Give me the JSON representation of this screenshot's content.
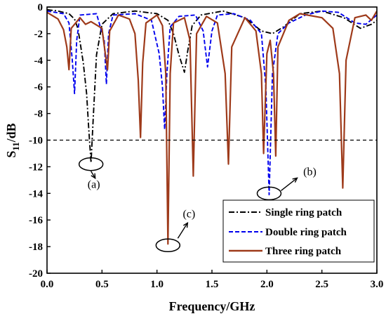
{
  "chart_data": {
    "type": "line",
    "xlabel": "Frequency/GHz",
    "ylabel_main": "S",
    "ylabel_sub": "11",
    "ylabel_suffix": "/dB",
    "xlim": [
      0.0,
      3.0
    ],
    "ylim": [
      -20,
      0
    ],
    "x_ticks": [
      "0.0",
      "0.5",
      "1.0",
      "1.5",
      "2.0",
      "2.5",
      "3.0"
    ],
    "x_tick_values": [
      0.0,
      0.5,
      1.0,
      1.5,
      2.0,
      2.5,
      3.0
    ],
    "y_ticks": [
      "0",
      "-2",
      "-4",
      "-6",
      "-8",
      "-10",
      "-12",
      "-14",
      "-16",
      "-18",
      "-20"
    ],
    "y_tick_values": [
      0,
      -2,
      -4,
      -6,
      -8,
      -10,
      -12,
      -14,
      -16,
      -18,
      -20
    ],
    "threshold": -10,
    "legend_position": "lower-right",
    "series": [
      {
        "name": "Single ring patch",
        "color": "#000000",
        "style": "dashdot",
        "points": [
          [
            0.0,
            -0.2
          ],
          [
            0.1,
            -0.3
          ],
          [
            0.2,
            -0.5
          ],
          [
            0.25,
            -0.9
          ],
          [
            0.28,
            -1.6
          ],
          [
            0.3,
            -2.6
          ],
          [
            0.33,
            -4.2
          ],
          [
            0.36,
            -6.5
          ],
          [
            0.38,
            -9.2
          ],
          [
            0.4,
            -11.7
          ],
          [
            0.42,
            -8.4
          ],
          [
            0.45,
            -3.6
          ],
          [
            0.5,
            -1.3
          ],
          [
            0.6,
            -0.5
          ],
          [
            0.8,
            -0.3
          ],
          [
            1.0,
            -0.5
          ],
          [
            1.1,
            -1.0
          ],
          [
            1.15,
            -2.0
          ],
          [
            1.2,
            -3.6
          ],
          [
            1.25,
            -4.9
          ],
          [
            1.28,
            -3.3
          ],
          [
            1.32,
            -1.4
          ],
          [
            1.4,
            -0.6
          ],
          [
            1.6,
            -0.3
          ],
          [
            1.8,
            -0.8
          ],
          [
            1.95,
            -1.8
          ],
          [
            2.05,
            -2.0
          ],
          [
            2.15,
            -1.5
          ],
          [
            2.3,
            -0.5
          ],
          [
            2.5,
            -0.3
          ],
          [
            2.7,
            -0.8
          ],
          [
            2.85,
            -1.6
          ],
          [
            2.95,
            -1.3
          ],
          [
            3.0,
            -1.0
          ]
        ]
      },
      {
        "name": "Double ring patch",
        "color": "#0000ee",
        "style": "dash",
        "points": [
          [
            0.0,
            -0.3
          ],
          [
            0.15,
            -0.5
          ],
          [
            0.2,
            -1.2
          ],
          [
            0.23,
            -4.0
          ],
          [
            0.25,
            -6.5
          ],
          [
            0.27,
            -2.5
          ],
          [
            0.3,
            -0.6
          ],
          [
            0.45,
            -0.5
          ],
          [
            0.52,
            -2.5
          ],
          [
            0.54,
            -5.8
          ],
          [
            0.56,
            -2.0
          ],
          [
            0.6,
            -0.6
          ],
          [
            0.8,
            -0.5
          ],
          [
            0.95,
            -1.0
          ],
          [
            1.02,
            -3.5
          ],
          [
            1.05,
            -6.0
          ],
          [
            1.07,
            -9.2
          ],
          [
            1.09,
            -5.0
          ],
          [
            1.12,
            -1.5
          ],
          [
            1.2,
            -0.7
          ],
          [
            1.35,
            -0.6
          ],
          [
            1.42,
            -1.8
          ],
          [
            1.46,
            -4.5
          ],
          [
            1.5,
            -1.8
          ],
          [
            1.55,
            -0.6
          ],
          [
            1.7,
            -0.5
          ],
          [
            1.85,
            -1.0
          ],
          [
            1.95,
            -2.0
          ],
          [
            1.99,
            -6.0
          ],
          [
            2.02,
            -14.1
          ],
          [
            2.05,
            -5.0
          ],
          [
            2.1,
            -2.0
          ],
          [
            2.2,
            -1.2
          ],
          [
            2.35,
            -0.6
          ],
          [
            2.5,
            -0.3
          ],
          [
            2.65,
            -0.4
          ],
          [
            2.8,
            -1.2
          ],
          [
            2.9,
            -1.3
          ],
          [
            3.0,
            -0.6
          ]
        ]
      },
      {
        "name": "Three ring patch",
        "color": "#9e3a1a",
        "style": "solid",
        "points": [
          [
            0.0,
            -0.4
          ],
          [
            0.1,
            -0.9
          ],
          [
            0.15,
            -1.7
          ],
          [
            0.18,
            -3.0
          ],
          [
            0.2,
            -4.7
          ],
          [
            0.22,
            -1.6
          ],
          [
            0.3,
            -0.8
          ],
          [
            0.35,
            -1.3
          ],
          [
            0.4,
            -1.1
          ],
          [
            0.5,
            -1.6
          ],
          [
            0.53,
            -3.5
          ],
          [
            0.55,
            -4.7
          ],
          [
            0.57,
            -1.8
          ],
          [
            0.65,
            -0.6
          ],
          [
            0.75,
            -0.9
          ],
          [
            0.8,
            -2.0
          ],
          [
            0.83,
            -5.5
          ],
          [
            0.85,
            -9.8
          ],
          [
            0.87,
            -4.2
          ],
          [
            0.9,
            -1.2
          ],
          [
            1.0,
            -0.6
          ],
          [
            1.05,
            -1.4
          ],
          [
            1.08,
            -5.0
          ],
          [
            1.1,
            -17.8
          ],
          [
            1.12,
            -5.0
          ],
          [
            1.15,
            -1.2
          ],
          [
            1.25,
            -0.8
          ],
          [
            1.3,
            -2.5
          ],
          [
            1.33,
            -12.7
          ],
          [
            1.36,
            -2.0
          ],
          [
            1.45,
            -0.7
          ],
          [
            1.55,
            -1.2
          ],
          [
            1.62,
            -5.0
          ],
          [
            1.65,
            -11.8
          ],
          [
            1.68,
            -3.0
          ],
          [
            1.8,
            -0.8
          ],
          [
            1.9,
            -1.8
          ],
          [
            1.95,
            -5.0
          ],
          [
            1.97,
            -11.0
          ],
          [
            2.0,
            -3.5
          ],
          [
            2.03,
            -2.5
          ],
          [
            2.06,
            -5.0
          ],
          [
            2.08,
            -11.2
          ],
          [
            2.1,
            -3.0
          ],
          [
            2.2,
            -1.0
          ],
          [
            2.3,
            -0.5
          ],
          [
            2.5,
            -0.8
          ],
          [
            2.6,
            -1.6
          ],
          [
            2.66,
            -5.0
          ],
          [
            2.69,
            -13.6
          ],
          [
            2.72,
            -4.0
          ],
          [
            2.8,
            -0.8
          ],
          [
            2.9,
            -0.6
          ],
          [
            2.95,
            -1.0
          ],
          [
            3.0,
            -0.3
          ]
        ]
      }
    ],
    "annotations": [
      {
        "label": "(a)",
        "x": 0.4,
        "y": -11.7
      },
      {
        "label": "(b)",
        "x": 2.02,
        "y": -13.9
      },
      {
        "label": "(c)",
        "x": 1.1,
        "y": -17.8
      }
    ]
  }
}
